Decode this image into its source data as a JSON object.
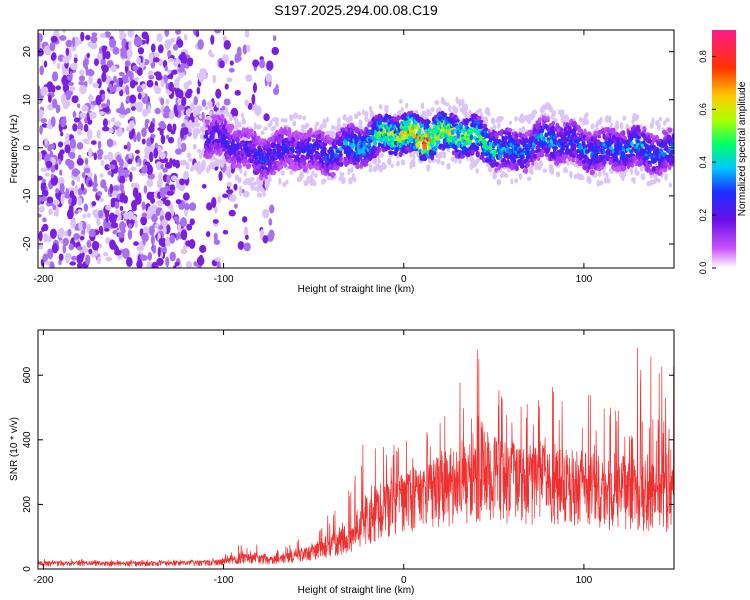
{
  "title": "S197.2025.294.00.08.C19",
  "colors": {
    "series": "#ee3030",
    "dot_light": "#dcc4f6",
    "dot_mid": "#a870f0",
    "dot_dark": "#7a1fe0",
    "dot_core": "#3a2ae8"
  },
  "chart_data": [
    {
      "type": "heatmap",
      "title": "S197.2025.294.00.08.C19",
      "xlabel": "Height of straight line (km)",
      "ylabel": "Frequency (Hz)",
      "xlim": [
        -203,
        150
      ],
      "ylim": [
        -25,
        24.5
      ],
      "xticks": [
        -200,
        -100,
        0,
        100
      ],
      "yticks": [
        -20,
        -10,
        0,
        10,
        20
      ],
      "colorbar": {
        "label": "Normalized spectral amplitude",
        "range": [
          0.0,
          0.9
        ],
        "ticks": [
          0.0,
          0.2,
          0.4,
          0.6,
          0.8
        ],
        "colormap": [
          "#ffffff",
          "#cc44ff",
          "#7a1fe0",
          "#2020ff",
          "#00ccff",
          "#00ff66",
          "#ccff00",
          "#ffcc00",
          "#ff3300",
          "#ff3399"
        ]
      },
      "ridge": {
        "x": [
          -110,
          -100,
          -90,
          -80,
          -70,
          -60,
          -50,
          -40,
          -30,
          -20,
          -10,
          0,
          10,
          20,
          30,
          40,
          50,
          60,
          70,
          80,
          90,
          100,
          110,
          120,
          130,
          140,
          150
        ],
        "freq": [
          2,
          2,
          0,
          -2,
          -1,
          0,
          -1,
          -1,
          0,
          1,
          3,
          3,
          2,
          3,
          3,
          2,
          0,
          -1,
          0,
          2,
          1,
          0,
          -1,
          0,
          0,
          -1,
          -1
        ],
        "amplitude": [
          0.25,
          0.3,
          0.25,
          0.3,
          0.3,
          0.25,
          0.3,
          0.35,
          0.4,
          0.45,
          0.6,
          0.65,
          0.85,
          0.7,
          0.6,
          0.55,
          0.45,
          0.4,
          0.35,
          0.4,
          0.35,
          0.35,
          0.35,
          0.35,
          0.4,
          0.35,
          0.35
        ]
      },
      "noise_region": {
        "x_range": [
          -203,
          -70
        ],
        "amplitude_range": [
          0.02,
          0.15
        ]
      }
    },
    {
      "type": "line",
      "xlabel": "Height of straight line (km)",
      "ylabel": "SNR (10 * v/v)",
      "xlim": [
        -203,
        150
      ],
      "ylim": [
        0,
        740
      ],
      "xticks": [
        -200,
        -100,
        0,
        100
      ],
      "yticks": [
        0,
        200,
        400,
        600
      ],
      "series": [
        {
          "name": "SNR",
          "x": [
            -200,
            -180,
            -160,
            -140,
            -120,
            -100,
            -90,
            -80,
            -70,
            -60,
            -50,
            -40,
            -30,
            -20,
            -10,
            0,
            10,
            20,
            30,
            40,
            50,
            60,
            70,
            80,
            90,
            100,
            110,
            120,
            130,
            140,
            150
          ],
          "baseline": [
            18,
            18,
            17,
            18,
            18,
            22,
            35,
            30,
            28,
            40,
            55,
            75,
            100,
            150,
            190,
            220,
            230,
            250,
            270,
            285,
            290,
            280,
            270,
            265,
            250,
            240,
            235,
            240,
            235,
            230,
            225
          ],
          "peak": [
            30,
            30,
            30,
            30,
            30,
            45,
            80,
            75,
            60,
            90,
            120,
            180,
            260,
            440,
            380,
            400,
            420,
            470,
            560,
            735,
            610,
            520,
            510,
            600,
            500,
            560,
            530,
            560,
            690,
            720,
            650
          ]
        }
      ]
    }
  ]
}
